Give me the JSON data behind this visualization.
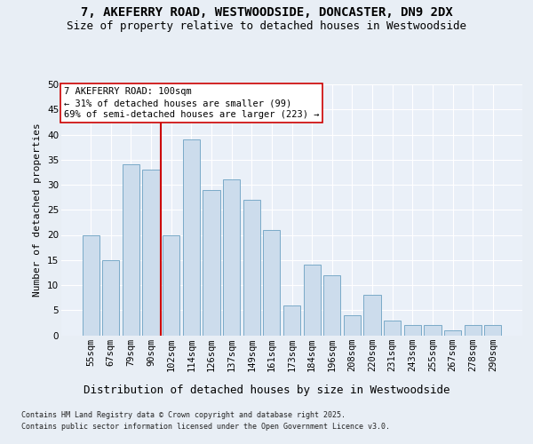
{
  "title1": "7, AKEFERRY ROAD, WESTWOODSIDE, DONCASTER, DN9 2DX",
  "title2": "Size of property relative to detached houses in Westwoodside",
  "xlabel": "Distribution of detached houses by size in Westwoodside",
  "ylabel": "Number of detached properties",
  "categories": [
    "55sqm",
    "67sqm",
    "79sqm",
    "90sqm",
    "102sqm",
    "114sqm",
    "126sqm",
    "137sqm",
    "149sqm",
    "161sqm",
    "173sqm",
    "184sqm",
    "196sqm",
    "208sqm",
    "220sqm",
    "231sqm",
    "243sqm",
    "255sqm",
    "267sqm",
    "278sqm",
    "290sqm"
  ],
  "values": [
    20,
    15,
    34,
    33,
    20,
    39,
    29,
    31,
    27,
    21,
    6,
    14,
    12,
    4,
    8,
    3,
    2,
    2,
    1,
    2,
    2
  ],
  "bar_color": "#ccdcec",
  "bar_edge_color": "#7aaac8",
  "vline_x_index": 4,
  "vline_color": "#cc0000",
  "annotation_line1": "7 AKEFERRY ROAD: 100sqm",
  "annotation_line2": "← 31% of detached houses are smaller (99)",
  "annotation_line3": "69% of semi-detached houses are larger (223) →",
  "annotation_box_color": "#ffffff",
  "annotation_box_edge": "#cc0000",
  "ylim": [
    0,
    50
  ],
  "yticks": [
    0,
    5,
    10,
    15,
    20,
    25,
    30,
    35,
    40,
    45,
    50
  ],
  "bg_color": "#e8eef5",
  "plot_bg_color": "#eaf0f8",
  "grid_color": "#ffffff",
  "footer1": "Contains HM Land Registry data © Crown copyright and database right 2025.",
  "footer2": "Contains public sector information licensed under the Open Government Licence v3.0.",
  "title_fontsize": 10,
  "subtitle_fontsize": 9,
  "xlabel_fontsize": 9,
  "ylabel_fontsize": 8,
  "tick_fontsize": 7.5,
  "annotation_fontsize": 7.5,
  "footer_fontsize": 6
}
